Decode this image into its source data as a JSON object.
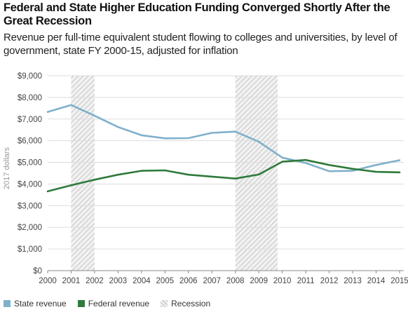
{
  "header": {
    "title": "Federal and State Higher Education Funding Converged Shortly After the Great Recession",
    "subtitle": "Revenue per full-time equivalent student flowing to colleges and universities, by level of government, state FY 2000-15, adjusted for inflation"
  },
  "chart_data": {
    "type": "line",
    "title": "Federal and State Higher Education Funding Converged Shortly After the Great Recession",
    "subtitle": "Revenue per full-time equivalent student flowing to colleges and universities, by level of government, state FY 2000-15, adjusted for inflation",
    "xlabel": "",
    "ylabel": "2017 dollars",
    "x": [
      2000,
      2001,
      2002,
      2003,
      2004,
      2005,
      2006,
      2007,
      2008,
      2009,
      2010,
      2011,
      2012,
      2013,
      2014,
      2015
    ],
    "x_tick_labels": [
      "2000",
      "2001",
      "2002",
      "2003",
      "2004",
      "2005",
      "2006",
      "2007",
      "2008",
      "2009",
      "2010",
      "2011",
      "2012",
      "2013",
      "2014",
      "2015"
    ],
    "y_ticks": [
      0,
      1000,
      2000,
      3000,
      4000,
      5000,
      6000,
      7000,
      8000,
      9000
    ],
    "y_tick_labels": [
      "$0",
      "$1,000",
      "$2,000",
      "$3,000",
      "$4,000",
      "$5,000",
      "$6,000",
      "$7,000",
      "$8,000",
      "$9,000"
    ],
    "ylim": [
      0,
      9000
    ],
    "grid": true,
    "legend_position": "bottom-left",
    "series": [
      {
        "name": "State revenue",
        "color": "#7fb0cc",
        "values": [
          7330,
          7650,
          7150,
          6630,
          6250,
          6110,
          6120,
          6360,
          6420,
          5950,
          5220,
          4970,
          4590,
          4610,
          4880,
          5100
        ]
      },
      {
        "name": "Federal revenue",
        "color": "#2f7a3c",
        "values": [
          3660,
          3940,
          4200,
          4430,
          4610,
          4630,
          4430,
          4340,
          4250,
          4440,
          5030,
          5110,
          4880,
          4700,
          4560,
          4540
        ]
      }
    ],
    "recession": {
      "name": "Recession",
      "periods": [
        [
          2001,
          2002
        ],
        [
          2008,
          2009.8
        ]
      ]
    }
  }
}
